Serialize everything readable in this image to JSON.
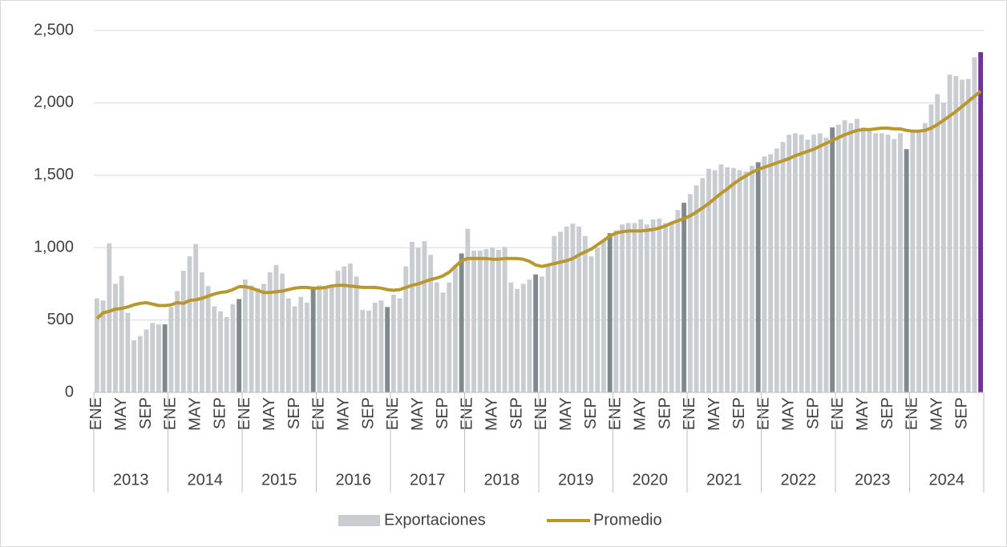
{
  "chart_data": {
    "type": "bar_line",
    "categories": [
      "ENE",
      null,
      null,
      null,
      "MAY",
      null,
      null,
      null,
      "SEP",
      null,
      null,
      null,
      "ENE",
      null,
      null,
      null,
      "MAY",
      null,
      null,
      null,
      "SEP",
      null,
      null,
      null,
      "ENE",
      null,
      null,
      null,
      "MAY",
      null,
      null,
      null,
      "SEP",
      null,
      null,
      null,
      "ENE",
      null,
      null,
      null,
      "MAY",
      null,
      null,
      null,
      "SEP",
      null,
      null,
      null,
      "ENE",
      null,
      null,
      null,
      "MAY",
      null,
      null,
      null,
      "SEP",
      null,
      null,
      null,
      "ENE",
      null,
      null,
      null,
      "MAY",
      null,
      null,
      null,
      "SEP",
      null,
      null,
      null,
      "ENE",
      null,
      null,
      null,
      "MAY",
      null,
      null,
      null,
      "SEP",
      null,
      null,
      null,
      "ENE",
      null,
      null,
      null,
      "MAY",
      null,
      null,
      null,
      "SEP",
      null,
      null,
      null,
      "ENE",
      null,
      null,
      null,
      "MAY",
      null,
      null,
      null,
      "SEP",
      null,
      null,
      null,
      "ENE",
      null,
      null,
      null,
      "MAY",
      null,
      null,
      null,
      "SEP",
      null,
      null,
      null,
      "ENE",
      null,
      null,
      null,
      "MAY",
      null,
      null,
      null,
      "SEP",
      null,
      null,
      null,
      "ENE",
      null,
      null,
      null,
      "MAY",
      null,
      null,
      null,
      "SEP",
      null,
      null,
      null
    ],
    "years": [
      "2013",
      "2014",
      "2015",
      "2016",
      "2017",
      "2018",
      "2019",
      "2020",
      "2021",
      "2022",
      "2023",
      "2024"
    ],
    "series": [
      {
        "name": "Exportaciones",
        "color": "#c9cdd1",
        "colors": [
          "#c9cdd1",
          "#c9cdd1",
          "#c9cdd1",
          "#c9cdd1",
          "#c9cdd1",
          "#c9cdd1",
          "#c9cdd1",
          "#c9cdd1",
          "#c9cdd1",
          "#c9cdd1",
          "#c9cdd1",
          "#7f898e",
          "#c9cdd1",
          "#c9cdd1",
          "#c9cdd1",
          "#c9cdd1",
          "#c9cdd1",
          "#c9cdd1",
          "#c9cdd1",
          "#c9cdd1",
          "#c9cdd1",
          "#c9cdd1",
          "#c9cdd1",
          "#7f898e",
          "#c9cdd1",
          "#c9cdd1",
          "#c9cdd1",
          "#c9cdd1",
          "#c9cdd1",
          "#c9cdd1",
          "#c9cdd1",
          "#c9cdd1",
          "#c9cdd1",
          "#c9cdd1",
          "#c9cdd1",
          "#7f898e",
          "#c9cdd1",
          "#c9cdd1",
          "#c9cdd1",
          "#c9cdd1",
          "#c9cdd1",
          "#c9cdd1",
          "#c9cdd1",
          "#c9cdd1",
          "#c9cdd1",
          "#c9cdd1",
          "#c9cdd1",
          "#7f898e",
          "#c9cdd1",
          "#c9cdd1",
          "#c9cdd1",
          "#c9cdd1",
          "#c9cdd1",
          "#c9cdd1",
          "#c9cdd1",
          "#c9cdd1",
          "#c9cdd1",
          "#c9cdd1",
          "#c9cdd1",
          "#7f898e",
          "#c9cdd1",
          "#c9cdd1",
          "#c9cdd1",
          "#c9cdd1",
          "#c9cdd1",
          "#c9cdd1",
          "#c9cdd1",
          "#c9cdd1",
          "#c9cdd1",
          "#c9cdd1",
          "#c9cdd1",
          "#7f898e",
          "#c9cdd1",
          "#c9cdd1",
          "#c9cdd1",
          "#c9cdd1",
          "#c9cdd1",
          "#c9cdd1",
          "#c9cdd1",
          "#c9cdd1",
          "#c9cdd1",
          "#c9cdd1",
          "#c9cdd1",
          "#7f898e",
          "#c9cdd1",
          "#c9cdd1",
          "#c9cdd1",
          "#c9cdd1",
          "#c9cdd1",
          "#c9cdd1",
          "#c9cdd1",
          "#c9cdd1",
          "#c9cdd1",
          "#c9cdd1",
          "#c9cdd1",
          "#7f898e",
          "#c9cdd1",
          "#c9cdd1",
          "#c9cdd1",
          "#c9cdd1",
          "#c9cdd1",
          "#c9cdd1",
          "#c9cdd1",
          "#c9cdd1",
          "#c9cdd1",
          "#c9cdd1",
          "#c9cdd1",
          "#7f898e",
          "#c9cdd1",
          "#c9cdd1",
          "#c9cdd1",
          "#c9cdd1",
          "#c9cdd1",
          "#c9cdd1",
          "#c9cdd1",
          "#c9cdd1",
          "#c9cdd1",
          "#c9cdd1",
          "#c9cdd1",
          "#7f898e",
          "#c9cdd1",
          "#c9cdd1",
          "#c9cdd1",
          "#c9cdd1",
          "#c9cdd1",
          "#c9cdd1",
          "#c9cdd1",
          "#c9cdd1",
          "#c9cdd1",
          "#c9cdd1",
          "#c9cdd1",
          "#7f898e",
          "#c9cdd1",
          "#c9cdd1",
          "#c9cdd1",
          "#c9cdd1",
          "#c9cdd1",
          "#c9cdd1",
          "#c9cdd1",
          "#c9cdd1",
          "#c9cdd1",
          "#c9cdd1",
          "#c9cdd1",
          "#7030a0"
        ],
        "values": [
          650,
          635,
          1030,
          750,
          805,
          550,
          360,
          390,
          435,
          480,
          470,
          470,
          590,
          700,
          840,
          940,
          1025,
          830,
          735,
          595,
          560,
          520,
          610,
          645,
          780,
          740,
          720,
          750,
          830,
          880,
          820,
          650,
          595,
          660,
          620,
          720,
          740,
          720,
          730,
          840,
          870,
          890,
          800,
          570,
          565,
          620,
          635,
          590,
          675,
          650,
          870,
          1040,
          1000,
          1045,
          950,
          760,
          690,
          760,
          880,
          960,
          1130,
          980,
          980,
          990,
          1000,
          985,
          1005,
          760,
          715,
          750,
          780,
          815,
          800,
          880,
          1080,
          1110,
          1145,
          1165,
          1145,
          1080,
          940,
          1000,
          1050,
          1100,
          1120,
          1160,
          1170,
          1170,
          1195,
          1160,
          1195,
          1200,
          1170,
          1180,
          1260,
          1310,
          1370,
          1430,
          1480,
          1545,
          1535,
          1575,
          1555,
          1550,
          1535,
          1525,
          1565,
          1590,
          1630,
          1645,
          1685,
          1730,
          1780,
          1790,
          1780,
          1745,
          1780,
          1790,
          1760,
          1830,
          1850,
          1880,
          1860,
          1890,
          1830,
          1810,
          1790,
          1790,
          1780,
          1750,
          1790,
          1680,
          1800,
          1810,
          1860,
          1990,
          2060,
          2000,
          2195,
          2185,
          2160,
          2165,
          2315,
          2350
        ]
      },
      {
        "name": "Promedio",
        "color": "#b8972e",
        "values": [
          510,
          550,
          560,
          575,
          580,
          590,
          605,
          615,
          620,
          610,
          600,
          600,
          605,
          620,
          615,
          635,
          640,
          650,
          665,
          680,
          690,
          695,
          710,
          730,
          730,
          720,
          705,
          690,
          690,
          695,
          700,
          710,
          720,
          725,
          725,
          720,
          720,
          725,
          735,
          740,
          740,
          735,
          730,
          725,
          725,
          725,
          720,
          710,
          705,
          710,
          725,
          740,
          750,
          765,
          780,
          790,
          805,
          830,
          870,
          910,
          925,
          925,
          925,
          925,
          920,
          920,
          925,
          925,
          925,
          920,
          905,
          880,
          870,
          880,
          890,
          900,
          910,
          925,
          950,
          970,
          990,
          1020,
          1050,
          1080,
          1100,
          1110,
          1115,
          1115,
          1115,
          1120,
          1125,
          1135,
          1150,
          1170,
          1185,
          1200,
          1220,
          1245,
          1275,
          1305,
          1340,
          1375,
          1405,
          1440,
          1470,
          1495,
          1520,
          1540,
          1555,
          1570,
          1585,
          1600,
          1615,
          1635,
          1650,
          1665,
          1680,
          1700,
          1720,
          1740,
          1760,
          1780,
          1795,
          1810,
          1815,
          1815,
          1820,
          1825,
          1825,
          1820,
          1820,
          1810,
          1805,
          1805,
          1810,
          1825,
          1850,
          1880,
          1910,
          1940,
          1975,
          2010,
          2045,
          2080
        ]
      }
    ],
    "ylim": [
      0,
      2500
    ],
    "yticks": [
      0,
      500,
      {
        "value": 1000,
        "label": "1,000"
      },
      {
        "value": 1500,
        "label": "1,500"
      },
      {
        "value": 2000,
        "label": "2,000"
      },
      {
        "value": 2500,
        "label": "2,500"
      }
    ],
    "grid": true,
    "legend": "bottom"
  }
}
